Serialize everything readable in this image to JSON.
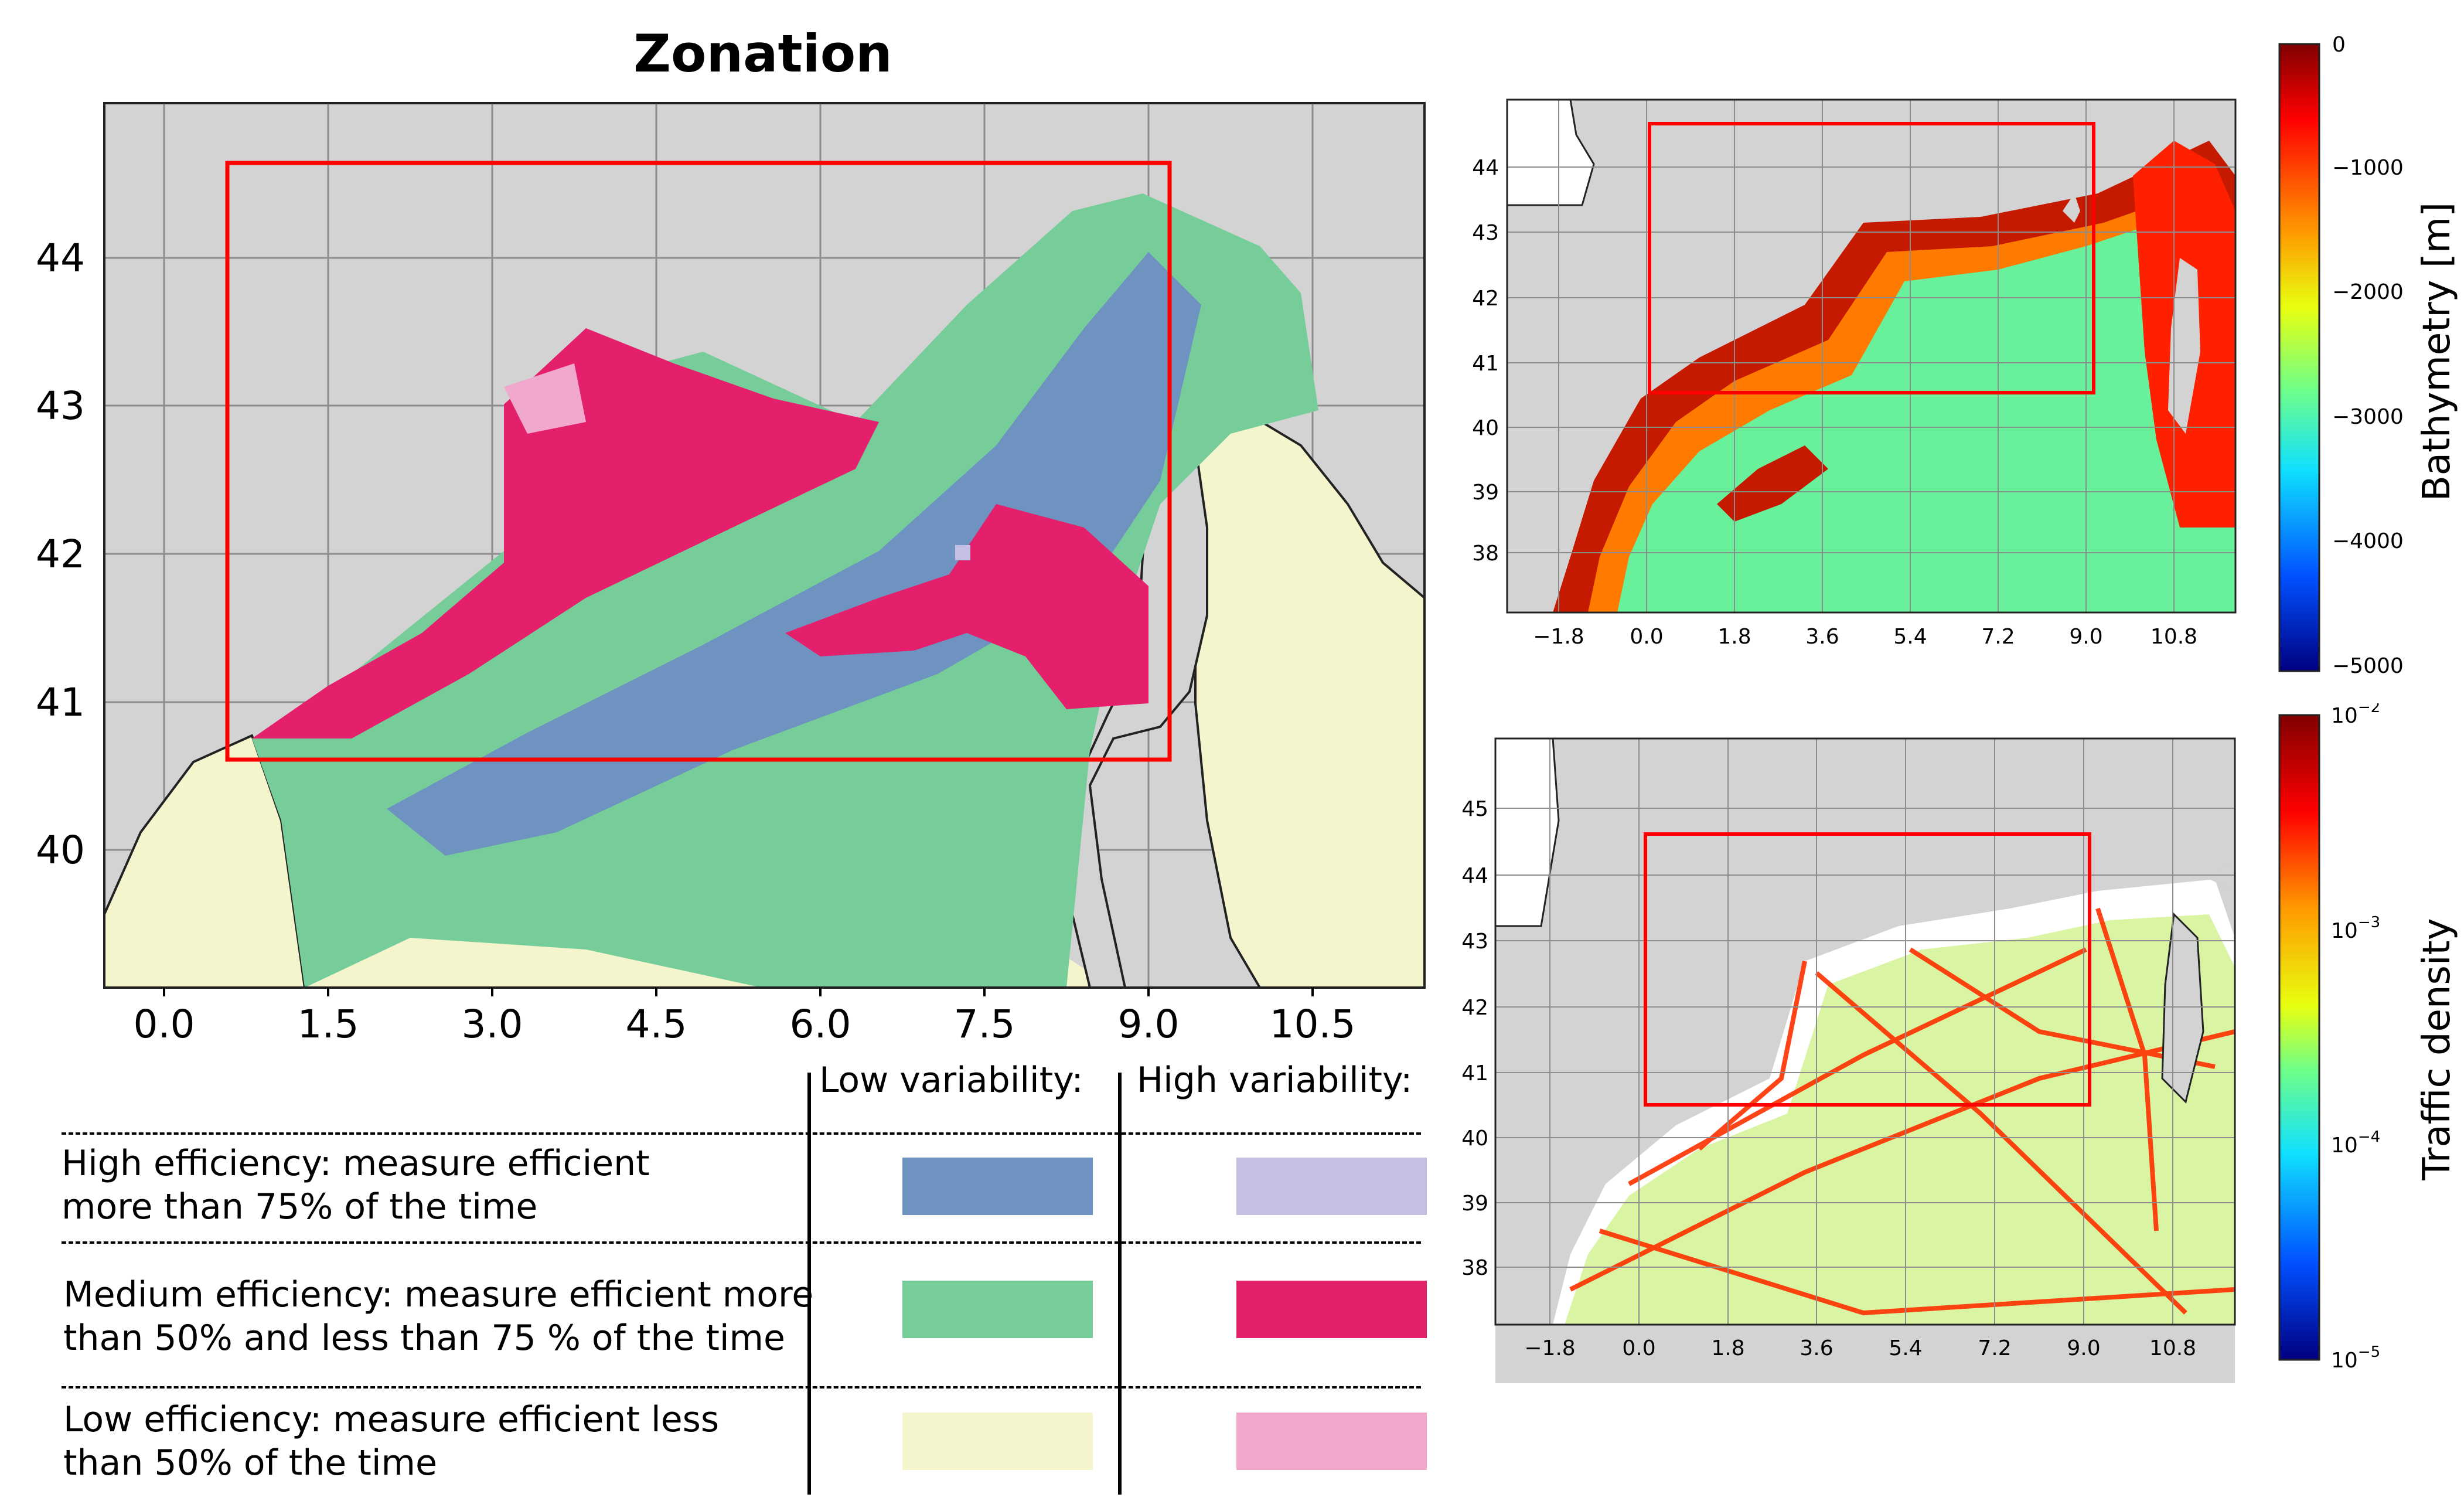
{
  "zonation_map": {
    "title": "Zonation",
    "x_ticks": [
      "0.0",
      "1.5",
      "3.0",
      "4.5",
      "6.0",
      "7.5",
      "9.0",
      "10.5"
    ],
    "y_ticks": [
      "44",
      "43",
      "42",
      "41",
      "40"
    ]
  },
  "bathymetry_map": {
    "x_ticks": [
      "−1.8",
      "0.0",
      "1.8",
      "3.6",
      "5.4",
      "7.2",
      "9.0",
      "10.8"
    ],
    "y_ticks": [
      "44",
      "43",
      "42",
      "41",
      "40",
      "39",
      "38"
    ],
    "colorbar": {
      "label": "Bathymetry  [m]",
      "ticks": [
        "0",
        "−1000",
        "−2000",
        "−3000",
        "−4000",
        "−5000"
      ],
      "range": [
        -5000,
        0
      ]
    }
  },
  "traffic_map": {
    "x_ticks": [
      "−1.8",
      "0.0",
      "1.8",
      "3.6",
      "5.4",
      "7.2",
      "9.0",
      "10.8"
    ],
    "y_ticks": [
      "45",
      "44",
      "43",
      "42",
      "41",
      "40",
      "39",
      "38"
    ],
    "colorbar": {
      "label": "Traffic density",
      "ticks": [
        "10",
        "10",
        "10",
        "10"
      ],
      "exponents": [
        "−2",
        "−3",
        "−4",
        "−5"
      ],
      "scale": "log"
    }
  },
  "legend": {
    "col_low": "Low variability:",
    "col_high": "High variability:",
    "rows": [
      {
        "line1": "High efficiency: measure efficient",
        "line2": "more than 75% of the time",
        "low_color": "#6e93c0",
        "high_color": "#c6bfe5"
      },
      {
        "line1": "Medium efficiency: measure efficient more",
        "line2": "than 50% and less than 75 % of the time",
        "low_color": "#76cd9a",
        "high_color": "#e41f6b"
      },
      {
        "line1": "Low efficiency: measure efficient less",
        "line2": "than 50% of the time",
        "low_color": "#f4f5cd",
        "high_color": "#f0a8cd"
      }
    ]
  },
  "colors": {
    "land_gray": "#d3d3d3",
    "selection_box": "#ff0000"
  }
}
